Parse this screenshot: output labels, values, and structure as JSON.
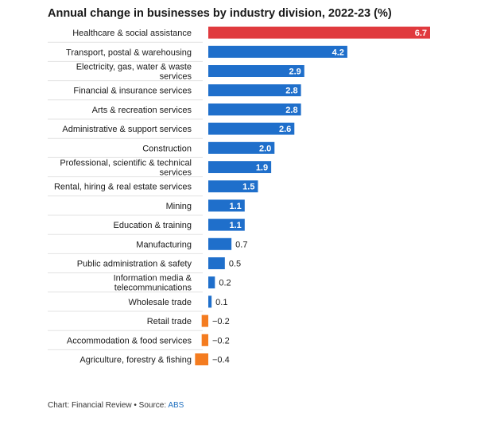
{
  "chart_data": {
    "type": "bar",
    "orientation": "horizontal",
    "title": "Annual change in businesses by industry division, 2022-23 (%)",
    "categories": [
      "Healthcare & social assistance",
      "Transport, postal & warehousing",
      "Electricity, gas, water & waste services",
      "Financial & insurance services",
      "Arts & recreation services",
      "Administrative & support services",
      "Construction",
      "Professional, scientific & technical services",
      "Rental, hiring & real estate services",
      "Mining",
      "Education & training",
      "Manufacturing",
      "Public administration & safety",
      "Information media & telecommunications",
      "Wholesale trade",
      "Retail trade",
      "Accommodation & food services",
      "Agriculture, forestry & fishing"
    ],
    "values": [
      6.7,
      4.2,
      2.9,
      2.8,
      2.8,
      2.6,
      2.0,
      1.9,
      1.5,
      1.1,
      1.1,
      0.7,
      0.5,
      0.2,
      0.1,
      -0.2,
      -0.2,
      -0.4
    ],
    "value_labels": [
      "6.7",
      "4.2",
      "2.9",
      "2.8",
      "2.8",
      "2.6",
      "2.0",
      "1.9",
      "1.5",
      "1.1",
      "1.1",
      "0.7",
      "0.5",
      "0.2",
      "0.1",
      "−0.2",
      "−0.2",
      "−0.4"
    ],
    "colors": {
      "highlight": "#e03a3e",
      "positive": "#1f6fcb",
      "negative": "#f47c20"
    },
    "grid": false
  },
  "footer": {
    "prefix": "Chart: Financial Review • Source: ",
    "source": "ABS"
  }
}
